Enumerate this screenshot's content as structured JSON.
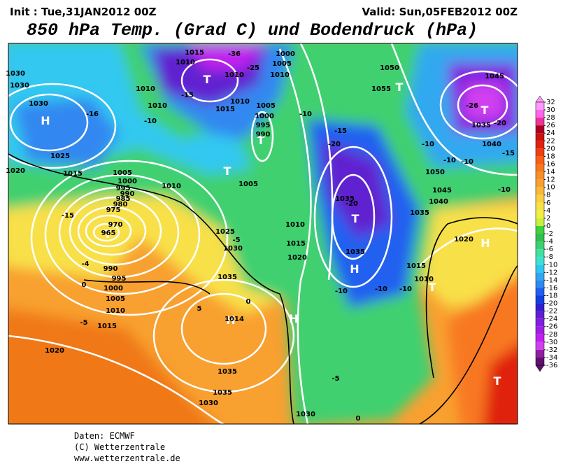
{
  "header": {
    "init": "Init : Tue,31JAN2012 00Z",
    "valid": "Valid: Sun,05FEB2012 00Z",
    "title": "850 hPa Temp. (Grad C) und Bodendruck (hPa)"
  },
  "map": {
    "labels": [
      "H",
      "H",
      "H",
      "H",
      "H",
      "T",
      "T",
      "T",
      "T",
      "T",
      "T",
      "T",
      "T",
      "T",
      "1015",
      "1010",
      "-36",
      "1000",
      "1005",
      "1010",
      "1010",
      "-25",
      "1030",
      "1030",
      "1030",
      "-16",
      "-15",
      "1010",
      "1010",
      "-10",
      "1015",
      "1010",
      "1005",
      "1000",
      "995",
      "990",
      "-10",
      "-15",
      "-20",
      "1050",
      "1055",
      "1045",
      "1035",
      "-20",
      "-26",
      "-10",
      "1040",
      "-15",
      "-10",
      "-10",
      "1050",
      "1045",
      "1040",
      "-10",
      "1035",
      "1035",
      "-20",
      "1025",
      "1015",
      "1020",
      "1005",
      "1000",
      "995",
      "990",
      "985",
      "980",
      "975",
      "970",
      "965",
      "-15",
      "1010",
      "1005",
      "1010",
      "1025",
      "-5",
      "1030",
      "1015",
      "1020",
      "1035",
      "990",
      "995",
      "1000",
      "1005",
      "1010",
      "1015",
      "-5",
      "0",
      "1035",
      "0",
      "5",
      "1014",
      "-4",
      "1015",
      "1010",
      "-10",
      "-10",
      "-10",
      "1020",
      "1020",
      "1035",
      "1035",
      "1030",
      "1030",
      "0",
      "-5"
    ]
  },
  "colorbar": {
    "ticks": [
      32,
      30,
      28,
      26,
      24,
      22,
      20,
      18,
      16,
      14,
      12,
      10,
      8,
      6,
      4,
      2,
      0,
      -2,
      -4,
      -6,
      -8,
      -10,
      -12,
      -14,
      -16,
      -18,
      -20,
      -22,
      -24,
      -26,
      -28,
      -30,
      -32,
      -34,
      -36
    ],
    "colors": [
      "#ff99ff",
      "#ff66ee",
      "#ee3399",
      "#aa0022",
      "#cc1111",
      "#e02010",
      "#f04010",
      "#f86018",
      "#f87820",
      "#f89028",
      "#f8a030",
      "#f8b838",
      "#f8d040",
      "#f8e048",
      "#f0f040",
      "#c8f040",
      "#40d040",
      "#30c050",
      "#40d070",
      "#40e0a0",
      "#40e0d0",
      "#30c8f0",
      "#30a8f0",
      "#3088f0",
      "#2060f0",
      "#1040e0",
      "#3020d0",
      "#6020d0",
      "#8020e0",
      "#a020e0",
      "#c020f0",
      "#d040f0",
      "#9020a0",
      "#601070"
    ]
  },
  "footer": {
    "source": "Daten: ECMWF",
    "copyright": "(C) Wetterzentrale",
    "url": "www.wetterzentrale.de"
  }
}
